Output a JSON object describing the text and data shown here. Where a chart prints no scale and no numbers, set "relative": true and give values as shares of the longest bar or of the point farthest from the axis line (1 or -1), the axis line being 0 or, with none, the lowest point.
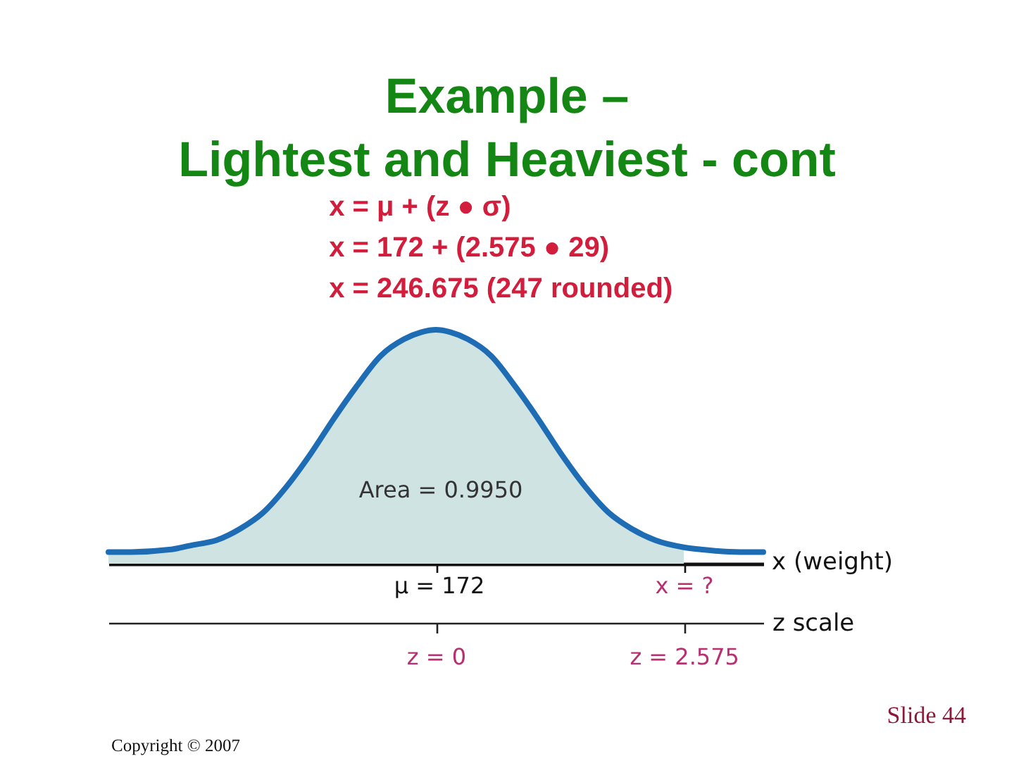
{
  "chart_data": {
    "type": "area",
    "title": "Example –\nLightest and Heaviest - cont",
    "relative": true,
    "series": [
      {
        "color": "#cfe3e3",
        "x": [
          -3.4,
          -3.16,
          -2.77,
          -2.52,
          -2.28,
          -2.03,
          -1.79,
          -1.55,
          -1.3,
          -1.06,
          -0.82,
          -0.57,
          -0.33,
          -0.15,
          0,
          0.15,
          0.33,
          0.57,
          0.82,
          1.06,
          1.3,
          1.55,
          1.79,
          2.03,
          2.28,
          2.575
        ],
        "values": [
          0.05,
          0.05,
          0.06,
          0.08,
          0.1,
          0.15,
          0.22,
          0.33,
          0.47,
          0.62,
          0.76,
          0.89,
          0.96,
          0.99,
          1,
          0.99,
          0.96,
          0.89,
          0.76,
          0.62,
          0.47,
          0.33,
          0.22,
          0.15,
          0.1,
          0.07
        ]
      },
      {
        "type": "line",
        "color": "#1d6cb4",
        "x": [
          -3.4,
          -3.16,
          -2.77,
          -2.52,
          -2.28,
          -2.03,
          -1.79,
          -1.55,
          -1.3,
          -1.06,
          -0.82,
          -0.57,
          -0.33,
          -0.15,
          0,
          0.15,
          0.33,
          0.57,
          0.82,
          1.06,
          1.3,
          1.55,
          1.79,
          2.03,
          2.28,
          2.575,
          2.77,
          3.16,
          3.4
        ],
        "values": [
          0.05,
          0.05,
          0.06,
          0.08,
          0.1,
          0.15,
          0.22,
          0.33,
          0.47,
          0.62,
          0.76,
          0.89,
          0.96,
          0.99,
          1,
          0.99,
          0.96,
          0.89,
          0.76,
          0.62,
          0.47,
          0.33,
          0.22,
          0.15,
          0.1,
          0.07,
          0.06,
          0.05,
          0.05
        ]
      }
    ],
    "xlabel": "z scale",
    "xlim": [
      -3.4,
      3.4
    ],
    "xticks": [
      {
        "value": 0,
        "label": "z = 0"
      },
      {
        "value": 2.575,
        "label": "z = 2.575"
      }
    ],
    "annotations": [
      "x = μ + (z ● σ)",
      "x = 172 + (2.575 ● 29)",
      "x = 246.675 (247 rounded)",
      "Area = 0.9950",
      "x (weight)",
      "μ = 172",
      "x = ?",
      "Slide 44",
      "Copyright © 2007"
    ]
  }
}
